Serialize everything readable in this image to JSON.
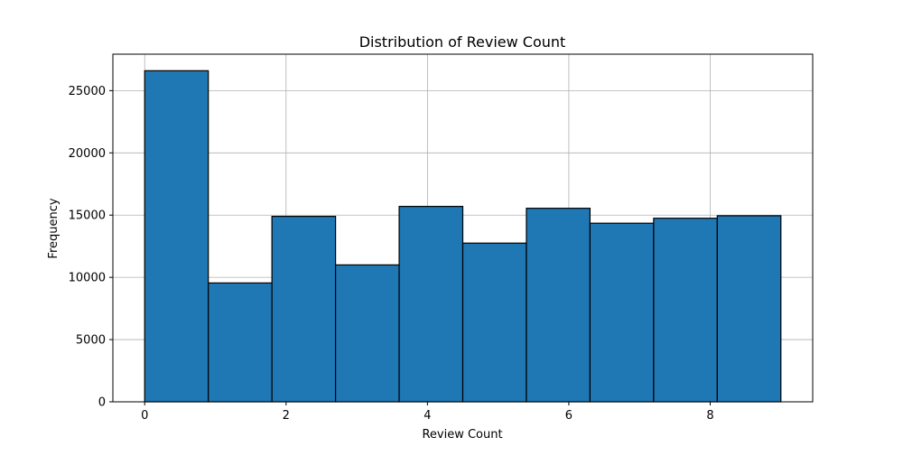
{
  "chart_data": {
    "type": "bar",
    "title": "Distribution of Review Count",
    "xlabel": "Review Count",
    "ylabel": "Frequency",
    "bins": [
      {
        "x0": 0.0,
        "x1": 0.9,
        "count": 26600
      },
      {
        "x0": 0.9,
        "x1": 1.8,
        "count": 9550
      },
      {
        "x0": 1.8,
        "x1": 2.7,
        "count": 14900
      },
      {
        "x0": 2.7,
        "x1": 3.6,
        "count": 11000
      },
      {
        "x0": 3.6,
        "x1": 4.5,
        "count": 15700
      },
      {
        "x0": 4.5,
        "x1": 5.4,
        "count": 12750
      },
      {
        "x0": 5.4,
        "x1": 6.3,
        "count": 15550
      },
      {
        "x0": 6.3,
        "x1": 7.2,
        "count": 14350
      },
      {
        "x0": 7.2,
        "x1": 8.1,
        "count": 14750
      },
      {
        "x0": 8.1,
        "x1": 9.0,
        "count": 14950
      }
    ],
    "xlim": [
      -0.45,
      9.45
    ],
    "ylim": [
      0,
      27930
    ],
    "xticks": [
      0,
      2,
      4,
      6,
      8
    ],
    "yticks": [
      0,
      5000,
      10000,
      15000,
      20000,
      25000
    ],
    "grid": true,
    "colors": {
      "bar_fill": "#1f77b4",
      "bar_edge": "#000000",
      "grid": "#b0b0b0"
    }
  }
}
